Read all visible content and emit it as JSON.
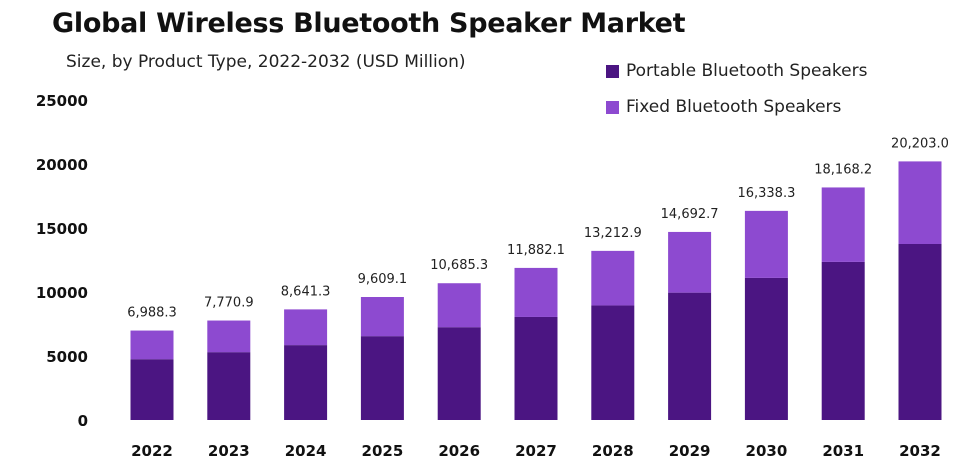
{
  "chart_data": {
    "type": "bar",
    "stacked": true,
    "title": "Global Wireless Bluetooth Speaker Market",
    "subtitle": "Size, by Product Type, 2022-2032 (USD Million)",
    "categories": [
      "2022",
      "2023",
      "2024",
      "2025",
      "2026",
      "2027",
      "2028",
      "2029",
      "2030",
      "2031",
      "2032"
    ],
    "series": [
      {
        "name": "Portable Bluetooth Speakers",
        "color": "#4b1582",
        "values": [
          4750,
          5300,
          5850,
          6550,
          7250,
          8050,
          8950,
          9950,
          11100,
          12350,
          13750
        ]
      },
      {
        "name": "Fixed Bluetooth Speakers",
        "color": "#8d4ad0",
        "values": [
          2238.3,
          2470.9,
          2791.3,
          3059.1,
          3435.3,
          3832.1,
          4262.9,
          4742.7,
          5238.3,
          5818.2,
          6453.0
        ]
      }
    ],
    "totals": [
      6988.3,
      7770.9,
      8641.3,
      9609.1,
      10685.3,
      11882.1,
      13212.9,
      14692.7,
      16338.3,
      18168.2,
      20203.0
    ],
    "total_labels": [
      "6,988.3",
      "7,770.9",
      "8,641.3",
      "9,609.1",
      "10,685.3",
      "11,882.1",
      "13,212.9",
      "14,692.7",
      "16,338.3",
      "18,168.2",
      "20,203.0"
    ],
    "yticks": [
      0,
      5000,
      10000,
      15000,
      20000,
      25000
    ],
    "ylim": [
      0,
      25000
    ],
    "xlabel": "",
    "ylabel": "",
    "legend_position": "top-right"
  }
}
